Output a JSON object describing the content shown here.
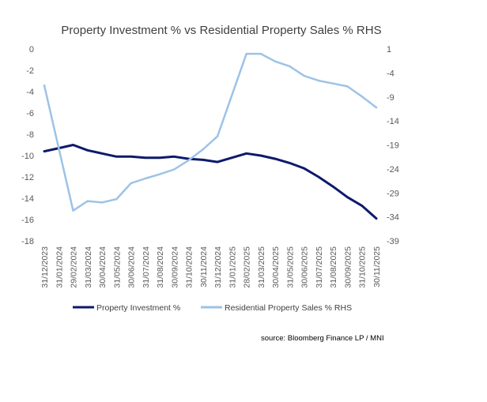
{
  "chart_data": {
    "type": "line",
    "title": "Property Investment % vs Residential Property Sales %  RHS",
    "source": "source: Bloomberg Finance LP / MNI",
    "categories": [
      "31/12/2023",
      "31/01/2024",
      "29/02/2024",
      "31/03/2024",
      "30/04/2024",
      "31/05/2024",
      "30/06/2024",
      "31/07/2024",
      "31/08/2024",
      "30/09/2024",
      "31/10/2024",
      "30/11/2024",
      "31/12/2024",
      "31/01/2025",
      "28/02/2025",
      "31/03/2025",
      "30/04/2025",
      "31/05/2025",
      "30/06/2025",
      "31/07/2025",
      "31/08/2025",
      "30/09/2025",
      "31/10/2025",
      "30/11/2025"
    ],
    "left_axis": {
      "min": -18,
      "max": 0,
      "ticks": [
        "0",
        "-2",
        "-4",
        "-6",
        "-8",
        "-10",
        "-12",
        "-14",
        "-16",
        "-18"
      ]
    },
    "right_axis": {
      "min": -39,
      "max": 1,
      "ticks": [
        "1",
        "-4",
        "-9",
        "-14",
        "-19",
        "-24",
        "-29",
        "-34",
        "-39"
      ]
    },
    "series": [
      {
        "name": "Property Investment %",
        "axis": "left",
        "color": "#0d1a6b",
        "values": [
          -9.6,
          -9.3,
          -9.0,
          -9.5,
          -9.8,
          -10.1,
          -10.1,
          -10.2,
          -10.2,
          -10.1,
          -10.3,
          -10.4,
          -10.6,
          -10.2,
          -9.8,
          -10.0,
          -10.3,
          -10.7,
          -11.2,
          -12.0,
          -12.9,
          -13.9,
          -14.7,
          -15.9
        ]
      },
      {
        "name": "Residential Property Sales %  RHS",
        "axis": "right",
        "color": "#9dc3e6",
        "values": [
          -6.6,
          null,
          -32.7,
          -30.7,
          -31.0,
          -30.3,
          -27.0,
          -26.0,
          -25.1,
          -24.1,
          -22.2,
          -19.9,
          -17.2,
          null,
          0.0,
          0.0,
          -1.6,
          -2.6,
          -4.6,
          -5.6,
          -6.2,
          -6.8,
          -8.9,
          -11.2
        ]
      }
    ]
  }
}
